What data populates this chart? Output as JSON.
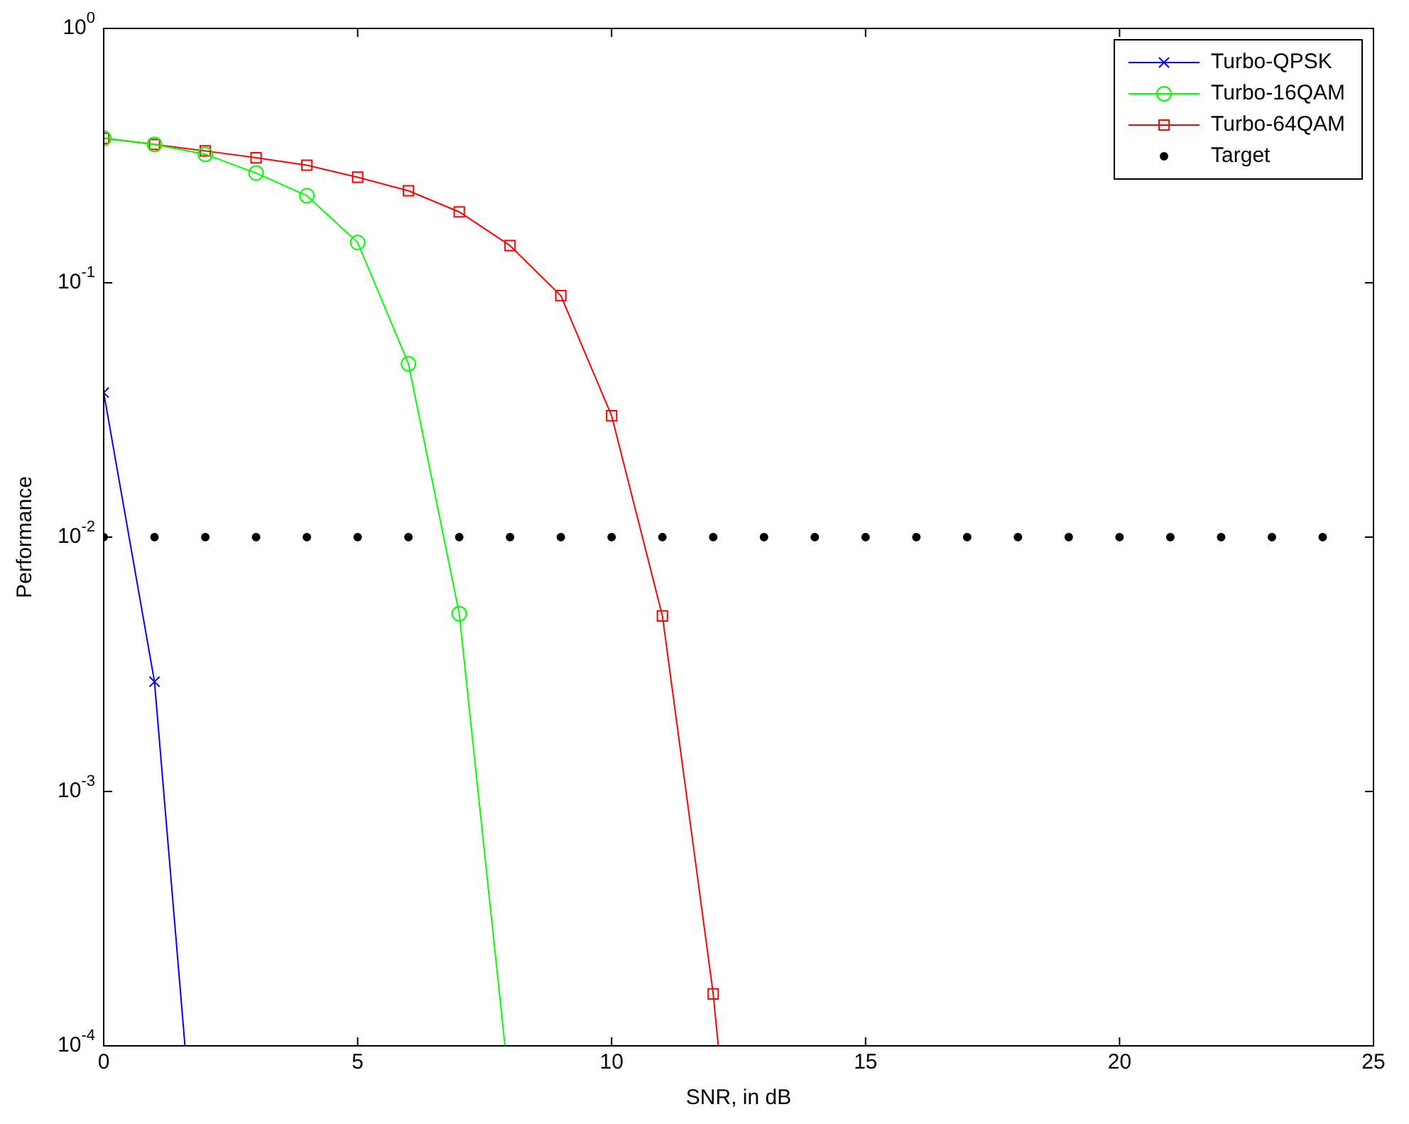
{
  "chart_data": {
    "type": "line",
    "xlabel": "SNR, in dB",
    "ylabel": "Performance",
    "log": "y",
    "grid": false,
    "legend": "top right",
    "xlim": [
      0,
      25
    ],
    "xticks": [
      0,
      5,
      10,
      15,
      20,
      25
    ],
    "ylim": [
      0.0001,
      1
    ],
    "yticks": [
      {
        "value": 0.0001,
        "label": "10$^{-4}$"
      },
      {
        "value": 0.001,
        "label": "10$^{-3}$"
      },
      {
        "value": 0.01,
        "label": "10$^{-2}$"
      },
      {
        "value": 0.1,
        "label": "10$^{-1}$"
      },
      {
        "value": 1,
        "label": "10$^{0}$"
      }
    ],
    "series": [
      {
        "name": "Turbo-QPSK",
        "color": "#0000ff",
        "marker": "cross",
        "x": [
          0,
          1,
          1.6
        ],
        "values": [
          0.037,
          0.0027,
          0.0001
        ]
      },
      {
        "name": "Turbo-16QAM",
        "color": "#00ff00",
        "marker": "circle",
        "x": [
          0,
          1,
          2,
          3,
          4,
          5,
          6,
          7,
          7.9
        ],
        "values": [
          0.37,
          0.35,
          0.32,
          0.27,
          0.22,
          0.144,
          0.048,
          0.005,
          0.0001
        ]
      },
      {
        "name": "Turbo-64QAM",
        "color": "#ff0000",
        "marker": "square",
        "x": [
          0,
          1,
          2,
          3,
          4,
          5,
          6,
          7,
          8,
          9,
          10,
          11,
          12,
          12.1
        ],
        "values": [
          0.37,
          0.35,
          0.33,
          0.31,
          0.29,
          0.26,
          0.23,
          0.19,
          0.14,
          0.089,
          0.03,
          0.0049,
          0.00016,
          0.0001
        ]
      },
      {
        "name": "Target",
        "type": "scatter",
        "color": "#000000",
        "marker": "circle",
        "x": [
          0,
          1,
          2,
          3,
          4,
          5,
          6,
          7,
          8,
          9,
          10,
          11,
          12,
          13,
          14,
          15,
          16,
          17,
          18,
          19,
          20,
          21,
          22,
          23,
          24
        ],
        "values": [
          0.01,
          0.01,
          0.01,
          0.01,
          0.01,
          0.01,
          0.01,
          0.01,
          0.01,
          0.01,
          0.01,
          0.01,
          0.01,
          0.01,
          0.01,
          0.01,
          0.01,
          0.01,
          0.01,
          0.01,
          0.01,
          0.01,
          0.01,
          0.01,
          0.01
        ]
      }
    ]
  }
}
